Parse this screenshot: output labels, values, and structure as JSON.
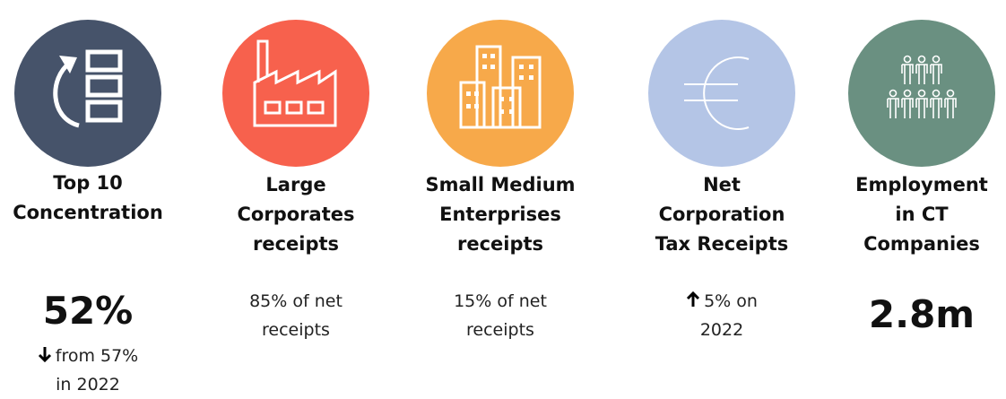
{
  "cards": [
    {
      "title_lines": [
        "Top 10",
        "Concentration"
      ],
      "value": "52%",
      "detail_lines": [
        "from 57%",
        "in 2022"
      ]
    },
    {
      "title_lines": [
        "Large",
        "Corporates",
        "receipts"
      ],
      "detail_lines": [
        "85% of net",
        "receipts"
      ]
    },
    {
      "title_lines": [
        "Small Medium",
        "Enterprises",
        "receipts"
      ],
      "detail_lines": [
        "15% of net",
        "receipts"
      ]
    },
    {
      "title_lines": [
        "Net",
        "Corporation",
        "Tax Receipts"
      ],
      "detail_lines": [
        "5% on",
        "2022"
      ]
    },
    {
      "title_lines": [
        "Employment",
        "in CT",
        "Companies"
      ],
      "value": "2.8m"
    }
  ]
}
